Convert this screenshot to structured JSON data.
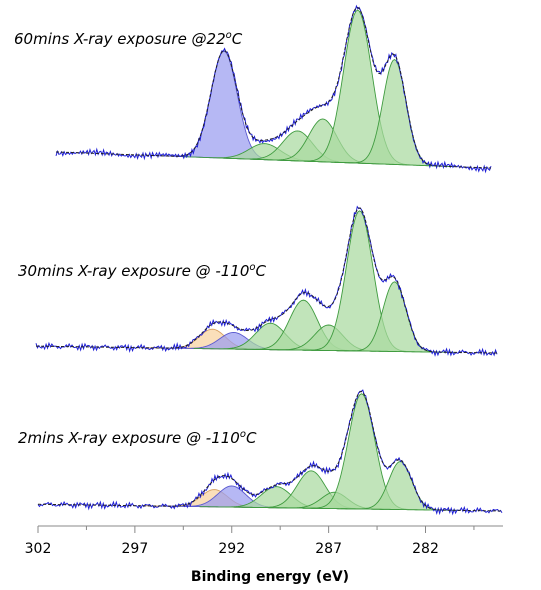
{
  "chart_data": {
    "type": "line",
    "title": "",
    "xlabel": "Binding energy (eV)",
    "ylabel": "",
    "x_range": [
      302,
      278
    ],
    "x_axis_reversed": true,
    "x_ticks": [
      302,
      297,
      292,
      287,
      282
    ],
    "x_tick_labels": [
      "302",
      "297",
      "292",
      "287",
      "282"
    ],
    "grid": false,
    "legend": "none",
    "colors": {
      "data_line": "#1f1fd6",
      "fit_envelope": "#222222",
      "hydrocarbon_fill": "#a9d9a0",
      "hydrocarbon_stroke": "#3f9b3f",
      "blue_component_fill": "#9a9cf0",
      "blue_component_stroke": "#5a5ad0",
      "orange_component_fill": "#f8d2a0",
      "orange_component_stroke": "#d6a060"
    },
    "panels": [
      {
        "label_text": "60mins X-ray exposure @22",
        "label_sup": "o",
        "label_tail": "C",
        "baseline": 0.15,
        "components": [
          {
            "kind": "blue",
            "center": 292.4,
            "fwhm": 1.6,
            "height": 1.0
          },
          {
            "kind": "green",
            "center": 290.3,
            "fwhm": 1.9,
            "height": 0.15
          },
          {
            "kind": "green",
            "center": 288.6,
            "fwhm": 1.8,
            "height": 0.28
          },
          {
            "kind": "green",
            "center": 287.3,
            "fwhm": 1.7,
            "height": 0.4
          },
          {
            "kind": "green",
            "center": 285.5,
            "fwhm": 1.7,
            "height": 1.43
          },
          {
            "kind": "green",
            "center": 283.6,
            "fwhm": 1.4,
            "height": 0.98
          }
        ]
      },
      {
        "label_text": "30mins X-ray exposure @ -110",
        "label_sup": "o",
        "label_tail": "C",
        "baseline": 0.07,
        "components": [
          {
            "kind": "orange",
            "center": 293.0,
            "fwhm": 1.6,
            "height": 0.2
          },
          {
            "kind": "blue",
            "center": 291.9,
            "fwhm": 1.7,
            "height": 0.17
          },
          {
            "kind": "green",
            "center": 290.0,
            "fwhm": 1.8,
            "height": 0.27
          },
          {
            "kind": "green",
            "center": 288.3,
            "fwhm": 1.7,
            "height": 0.51
          },
          {
            "kind": "green",
            "center": 287.0,
            "fwhm": 1.7,
            "height": 0.26
          },
          {
            "kind": "green",
            "center": 285.4,
            "fwhm": 1.6,
            "height": 1.43
          },
          {
            "kind": "green",
            "center": 283.6,
            "fwhm": 1.4,
            "height": 0.71
          }
        ]
      },
      {
        "label_text": "2mins X-ray exposure @ -110",
        "label_sup": "o",
        "label_tail": "C",
        "baseline": 0.07,
        "components": [
          {
            "kind": "orange",
            "center": 292.9,
            "fwhm": 1.6,
            "height": 0.18
          },
          {
            "kind": "blue",
            "center": 292.0,
            "fwhm": 1.7,
            "height": 0.22
          },
          {
            "kind": "green",
            "center": 289.7,
            "fwhm": 1.8,
            "height": 0.22
          },
          {
            "kind": "green",
            "center": 287.9,
            "fwhm": 1.7,
            "height": 0.39
          },
          {
            "kind": "green",
            "center": 286.7,
            "fwhm": 1.6,
            "height": 0.17
          },
          {
            "kind": "green",
            "center": 285.3,
            "fwhm": 1.6,
            "height": 1.2
          },
          {
            "kind": "green",
            "center": 283.3,
            "fwhm": 1.4,
            "height": 0.5
          }
        ]
      }
    ]
  }
}
